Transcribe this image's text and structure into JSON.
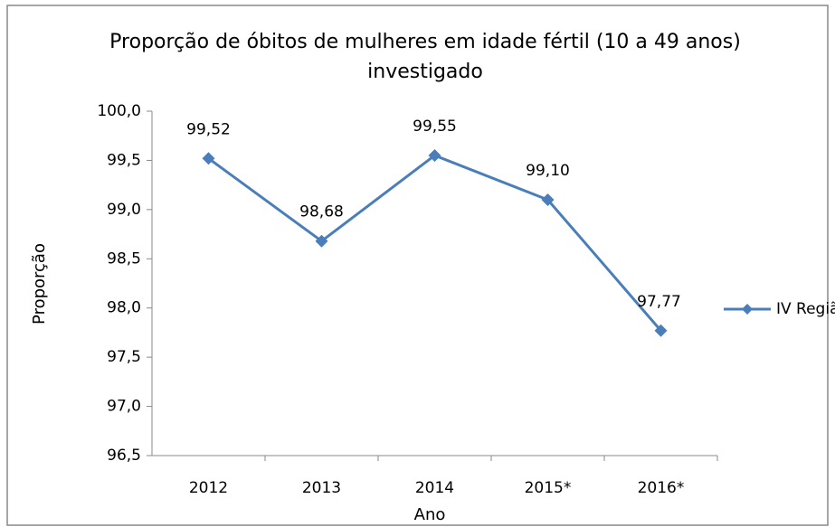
{
  "chart_data": {
    "type": "line",
    "title": "Proporção de óbitos de mulheres em idade fértil (10 a 49 anos) investigado",
    "x_label": "Ano",
    "y_label": "Proporção",
    "categories": [
      "2012",
      "2013",
      "2014",
      "2015*",
      "2016*"
    ],
    "series": [
      {
        "name": "IV Região",
        "color": "#4a7ebb",
        "values": [
          99.52,
          98.68,
          99.55,
          99.1,
          97.77
        ],
        "value_labels": [
          "99,52",
          "98,68",
          "99,55",
          "99,10",
          "97,77"
        ]
      }
    ],
    "ylim": [
      96.5,
      100.0
    ],
    "yticks": [
      {
        "value": 96.5,
        "label": "96,5"
      },
      {
        "value": 97.0,
        "label": "97,0"
      },
      {
        "value": 97.5,
        "label": "97,5"
      },
      {
        "value": 98.0,
        "label": "98,0"
      },
      {
        "value": 98.5,
        "label": "98,5"
      },
      {
        "value": 99.0,
        "label": "99,0"
      },
      {
        "value": 99.5,
        "label": "99,5"
      },
      {
        "value": 100.0,
        "label": "100,0"
      }
    ],
    "legend": "right"
  }
}
